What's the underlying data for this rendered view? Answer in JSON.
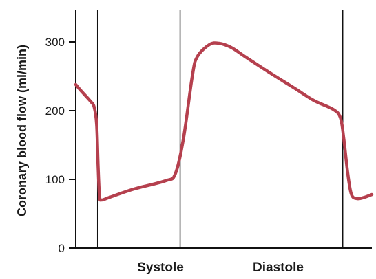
{
  "chart_data": {
    "type": "line",
    "title": "",
    "ylabel": "Coronary blood flow (ml/min)",
    "xlabel": "",
    "ylim": [
      0,
      350
    ],
    "yticks": [
      0,
      100,
      200,
      300
    ],
    "phase_labels": [
      "Systole",
      "Diastole"
    ],
    "series_color": "#b5404e",
    "axis_color": "#111111",
    "series": [
      {
        "values": [
          [
            0.0,
            238
          ],
          [
            0.12,
            228
          ],
          [
            0.3,
            214
          ],
          [
            0.38,
            205
          ],
          [
            0.43,
            180
          ],
          [
            0.46,
            120
          ],
          [
            0.49,
            76
          ],
          [
            0.53,
            70
          ],
          [
            0.7,
            74
          ],
          [
            1.2,
            86
          ],
          [
            1.85,
            98
          ],
          [
            2.05,
            108
          ],
          [
            2.22,
            160
          ],
          [
            2.4,
            250
          ],
          [
            2.5,
            278
          ],
          [
            2.75,
            296
          ],
          [
            2.95,
            298
          ],
          [
            3.2,
            292
          ],
          [
            3.5,
            278
          ],
          [
            4.0,
            255
          ],
          [
            4.5,
            233
          ],
          [
            4.9,
            215
          ],
          [
            5.3,
            202
          ],
          [
            5.45,
            190
          ],
          [
            5.52,
            160
          ],
          [
            5.6,
            110
          ],
          [
            5.68,
            78
          ],
          [
            5.8,
            72
          ],
          [
            5.95,
            74
          ],
          [
            6.1,
            78
          ]
        ]
      }
    ],
    "phase_boundaries": [
      0.45,
      2.15,
      5.5
    ]
  }
}
